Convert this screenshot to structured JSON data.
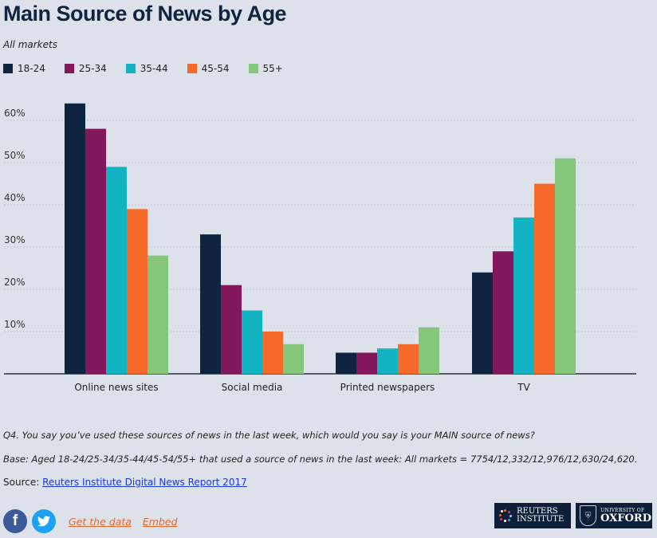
{
  "title": "Main Source of News by Age",
  "subtitle": "All markets",
  "colors": {
    "18-24": "#0e2441",
    "25-34": "#82175c",
    "35-44": "#12b3c2",
    "45-54": "#f56a2a",
    "55+": "#84c77a",
    "gridline": "#c3c8d3",
    "axis": "#2a2f3d"
  },
  "legend": [
    {
      "label": "18-24",
      "color": "#0e2441"
    },
    {
      "label": "25-34",
      "color": "#82175c"
    },
    {
      "label": "35-44",
      "color": "#12b3c2"
    },
    {
      "label": "45-54",
      "color": "#f56a2a"
    },
    {
      "label": "55+",
      "color": "#84c77a"
    }
  ],
  "chart_data": {
    "type": "bar",
    "title": "Main Source of News by Age",
    "subtitle": "All markets",
    "categories": [
      "Online news sites",
      "Social media",
      "Printed newspapers",
      "TV"
    ],
    "series": [
      {
        "name": "18-24",
        "color": "#0e2441",
        "values": [
          64,
          33,
          5,
          24
        ]
      },
      {
        "name": "25-34",
        "color": "#82175c",
        "values": [
          58,
          21,
          5,
          29
        ]
      },
      {
        "name": "35-44",
        "color": "#12b3c2",
        "values": [
          49,
          15,
          6,
          37
        ]
      },
      {
        "name": "45-54",
        "color": "#f56a2a",
        "values": [
          39,
          10,
          7,
          45
        ]
      },
      {
        "name": "55+",
        "color": "#84c77a",
        "values": [
          28,
          7,
          11,
          51
        ]
      }
    ],
    "yticks": [
      "10%",
      "20%",
      "30%",
      "40%",
      "50%",
      "60%"
    ],
    "ylim": [
      0,
      66
    ],
    "grid": true,
    "legend_position": "top-left"
  },
  "notes": {
    "question": "Q4. You say you’ve used these sources of news in the last week, which would you say is your MAIN source of news?",
    "base": "Base: Aged 18-24/25-34/35-44/45-54/55+ that used a source of news in the last week: All markets = 7754/12,332/12,976/12,630/24,620."
  },
  "source": {
    "label": "Source:",
    "link_text": "Reuters Institute Digital News Report 2017"
  },
  "footer": {
    "get_data": "Get the data",
    "embed": "Embed",
    "facebook_glyph": "f",
    "twitter_glyph": "🐦"
  },
  "logos": {
    "reuters_line1": "REUTERS",
    "reuters_line2": "INSTITUTE",
    "oxford_line1": "UNIVERSITY OF",
    "oxford_line2": "OXFORD"
  }
}
